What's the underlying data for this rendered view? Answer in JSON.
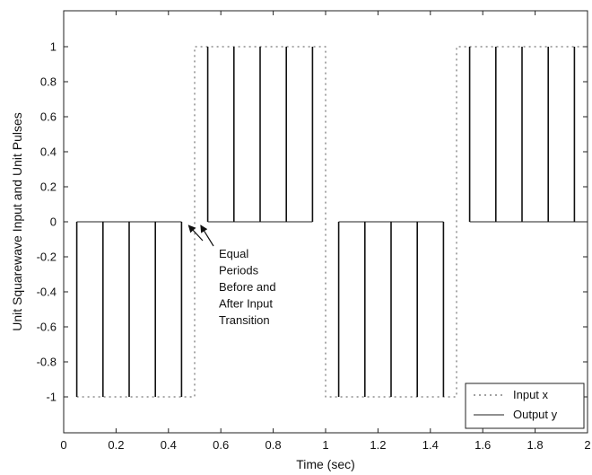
{
  "chart_data": {
    "type": "line",
    "title": "",
    "xlabel": "Time (sec)",
    "ylabel": "Unit Squarewave Input and Unit Pulses",
    "xlim": [
      0,
      2
    ],
    "ylim": [
      -1.2,
      1.2
    ],
    "x_ticks": [
      0,
      0.2,
      0.4,
      0.6,
      0.8,
      1,
      1.2,
      1.4,
      1.6,
      1.8,
      2
    ],
    "x_tick_labels": [
      "0",
      "0.2",
      "0.4",
      "0.6",
      "0.8",
      "1",
      "1.2",
      "1.4",
      "1.6",
      "1.8",
      "2"
    ],
    "y_ticks": [
      1,
      0.8,
      0.6,
      0.4,
      0.2,
      0,
      -0.2,
      -0.4,
      -0.6,
      -0.8,
      -1
    ],
    "y_tick_labels": [
      "1",
      "0.8",
      "0.6",
      "0.4",
      "0.2",
      "0",
      "-0.2",
      "-0.4",
      "-0.6",
      "-0.8",
      "-1"
    ],
    "grid": false,
    "legend_position": "bottom-right",
    "series": [
      {
        "name": "Input x",
        "style": "dotted",
        "x": [
          0.05,
          0.5,
          0.5,
          1.0,
          1.0,
          1.5,
          1.5,
          2.0
        ],
        "y": [
          -1,
          -1,
          1,
          1,
          -1,
          -1,
          1,
          1
        ]
      },
      {
        "name": "Output y",
        "style": "solid",
        "baseline": 0,
        "pulse_x": [
          0.05,
          0.15,
          0.25,
          0.35,
          0.45,
          0.55,
          0.65,
          0.75,
          0.85,
          0.95,
          1.05,
          1.15,
          1.25,
          1.35,
          1.45,
          1.55,
          1.65,
          1.75,
          1.85,
          1.95
        ],
        "pulse_y": [
          -1,
          -1,
          -1,
          -1,
          -1,
          1,
          1,
          1,
          1,
          1,
          -1,
          -1,
          -1,
          -1,
          -1,
          1,
          1,
          1,
          1,
          1
        ]
      }
    ],
    "annotation": {
      "lines": [
        "Equal",
        "Periods",
        "Before and",
        "After Input",
        "Transition"
      ],
      "arrow_targets_x": [
        0.47,
        0.53
      ],
      "arrow_target_y": 0
    }
  }
}
